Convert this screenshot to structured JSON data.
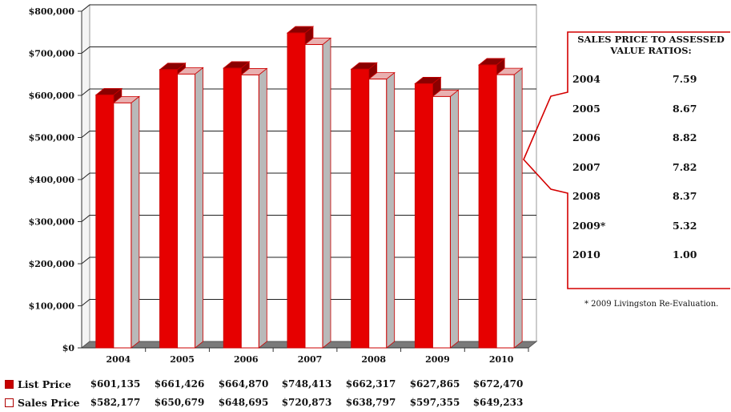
{
  "chart_data": {
    "type": "bar",
    "categories": [
      "2004",
      "2005",
      "2006",
      "2007",
      "2008",
      "2009",
      "2010"
    ],
    "series": [
      {
        "name": "List Price",
        "values": [
          601135,
          661426,
          664870,
          748413,
          662317,
          627865,
          672470
        ],
        "color": "#e60000"
      },
      {
        "name": "Sales Price",
        "values": [
          582177,
          650679,
          648695,
          720873,
          638797,
          597355,
          649233
        ],
        "color": "#ffffff"
      }
    ],
    "value_labels": {
      "List Price": [
        "$601,135",
        "$661,426",
        "$664,870",
        "$748,413",
        "$662,317",
        "$627,865",
        "$672,470"
      ],
      "Sales Price": [
        "$582,177",
        "$650,679",
        "$648,695",
        "$720,873",
        "$638,797",
        "$597,355",
        "$649,233"
      ]
    },
    "y_ticks": [
      "$0",
      "$100,000",
      "$200,000",
      "$300,000",
      "$400,000",
      "$500,000",
      "$600,000",
      "$700,000",
      "$800,000"
    ],
    "ylim": [
      0,
      800000
    ],
    "grid": true,
    "legend_position": "bottom-left table",
    "bar_style": "3d"
  },
  "ratios_panel": {
    "title": "SALES PRICE TO ASSESSED VALUE RATIOS:",
    "rows": [
      {
        "year": "2004",
        "ratio": "7.59"
      },
      {
        "year": "2005",
        "ratio": "8.67"
      },
      {
        "year": "2006",
        "ratio": "8.82"
      },
      {
        "year": "2007",
        "ratio": "7.82"
      },
      {
        "year": "2008",
        "ratio": "8.37"
      },
      {
        "year": "2009*",
        "ratio": "5.32"
      },
      {
        "year": "2010",
        "ratio": "1.00"
      }
    ],
    "footnote": "* 2009 Livingston Re-Evaluation."
  },
  "colors": {
    "list": "#e60000",
    "list_dark": "#8a0000",
    "sales_side": "#b9b9b9",
    "outline": "#cc0000"
  }
}
